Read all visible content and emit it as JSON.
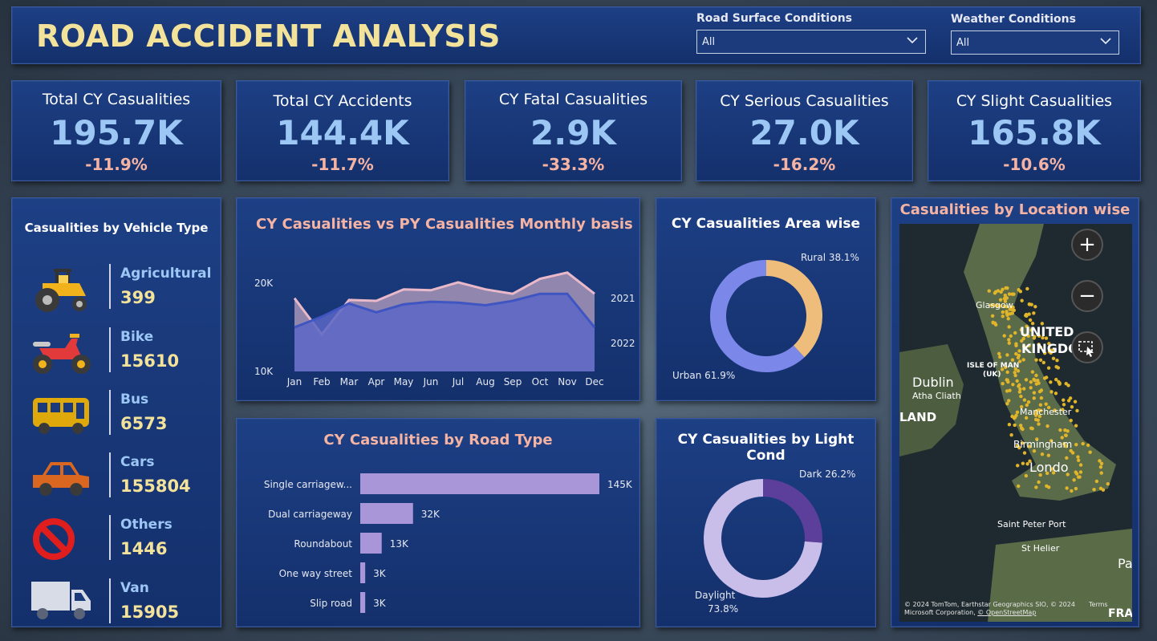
{
  "header": {
    "title": "ROAD ACCIDENT ANALYSIS"
  },
  "filters": [
    {
      "label": "Road Surface Conditions",
      "value": "All"
    },
    {
      "label": "Weather Conditions",
      "value": "All"
    }
  ],
  "kpis": [
    {
      "title": "Total CY Casualities",
      "value": "195.7K",
      "delta": "-11.9%"
    },
    {
      "title": "Total CY Accidents",
      "value": "144.4K",
      "delta": "-11.7%"
    },
    {
      "title": "CY Fatal Casualities",
      "value": "2.9K",
      "delta": "-33.3%"
    },
    {
      "title": "CY Serious Casualities",
      "value": "27.0K",
      "delta": "-16.2%"
    },
    {
      "title": "CY Slight Casualities",
      "value": "165.8K",
      "delta": "-10.6%"
    }
  ],
  "vehicles": {
    "title": "Casualities by Vehicle Type",
    "items": [
      {
        "name": "Agricultural",
        "value": "399",
        "icon": "tractor-icon"
      },
      {
        "name": "Bike",
        "value": "15610",
        "icon": "motorbike-icon"
      },
      {
        "name": "Bus",
        "value": "6573",
        "icon": "bus-icon"
      },
      {
        "name": "Cars",
        "value": "155804",
        "icon": "car-icon"
      },
      {
        "name": "Others",
        "value": "1446",
        "icon": "prohibited-icon"
      },
      {
        "name": "Van",
        "value": "15905",
        "icon": "van-icon"
      }
    ]
  },
  "map": {
    "title": "Casualities by Location wise",
    "labels": {
      "glasgow": "Glasgow",
      "uk1": "UNITED",
      "uk2": "KINGDOM",
      "dublin": "Dublin",
      "dublin2": "Atha Cliath",
      "iom": "ISLE OF MAN",
      "iom2": "(UK)",
      "land": "LAND",
      "manchester": "Manchester",
      "birmingham": "Birmingham",
      "london": "Londo",
      "spp": "Saint Peter Port",
      "sh": "St Helier",
      "pa": "Pa",
      "fra": "FRA"
    },
    "attribution1": "© 2024 TomTom, Earthstar Geographics SIO, © 2024 Microsoft Corporation,",
    "attribution2": "© OpenStreetMap",
    "attribution3": "Terms",
    "zoom_in": "+",
    "zoom_out": "−"
  },
  "colors": {
    "title": "#f3e29a",
    "kpi_value": "#9cc7f5",
    "kpi_delta": "#f5b3a3",
    "card": "#1a3a7c"
  },
  "chart_data": [
    {
      "type": "area",
      "title": "CY Casualities vs PY Casualities Monthly basis",
      "x": [
        "Jan",
        "Feb",
        "Mar",
        "Apr",
        "May",
        "Jun",
        "Jul",
        "Aug",
        "Sep",
        "Oct",
        "Nov",
        "Dec"
      ],
      "ylim": [
        10000,
        22000
      ],
      "yticks": [
        {
          "v": 10000,
          "label": "10K"
        },
        {
          "v": 20000,
          "label": "20K"
        }
      ],
      "series": [
        {
          "name": "2021",
          "color": "#e9b9c9",
          "values": [
            18300,
            14200,
            18100,
            18000,
            19300,
            19200,
            20100,
            19300,
            18800,
            20500,
            21200,
            18800
          ]
        },
        {
          "name": "2022",
          "color": "#3f55c2",
          "values": [
            15000,
            16200,
            17700,
            16700,
            17600,
            17900,
            17800,
            17500,
            18000,
            18800,
            18800,
            15000
          ]
        }
      ]
    },
    {
      "type": "pie",
      "title": "CY Casualities Area wise",
      "slices": [
        {
          "label": "Rural",
          "value": 38.1,
          "display": "Rural 38.1%",
          "color": "#eebd7b"
        },
        {
          "label": "Urban",
          "value": 61.9,
          "display": "Urban 61.9%",
          "color": "#7b88ea"
        }
      ]
    },
    {
      "type": "bar",
      "title": "CY Casualities by Road Type",
      "categories": [
        "Single carriagew...",
        "Dual carriageway",
        "Roundabout",
        "One way street",
        "Slip road"
      ],
      "values": [
        145000,
        32000,
        13000,
        3000,
        3000
      ],
      "labels": [
        "145K",
        "32K",
        "13K",
        "3K",
        "3K"
      ],
      "color": "#a996d8"
    },
    {
      "type": "pie",
      "title": "CY Casualities by Light Cond",
      "slices": [
        {
          "label": "Dark",
          "value": 26.2,
          "display": "Dark 26.2%",
          "color": "#5b3f9a"
        },
        {
          "label": "Daylight",
          "value": 73.8,
          "display": "Daylight 73.8%",
          "color": "#c9bdea"
        }
      ]
    }
  ]
}
